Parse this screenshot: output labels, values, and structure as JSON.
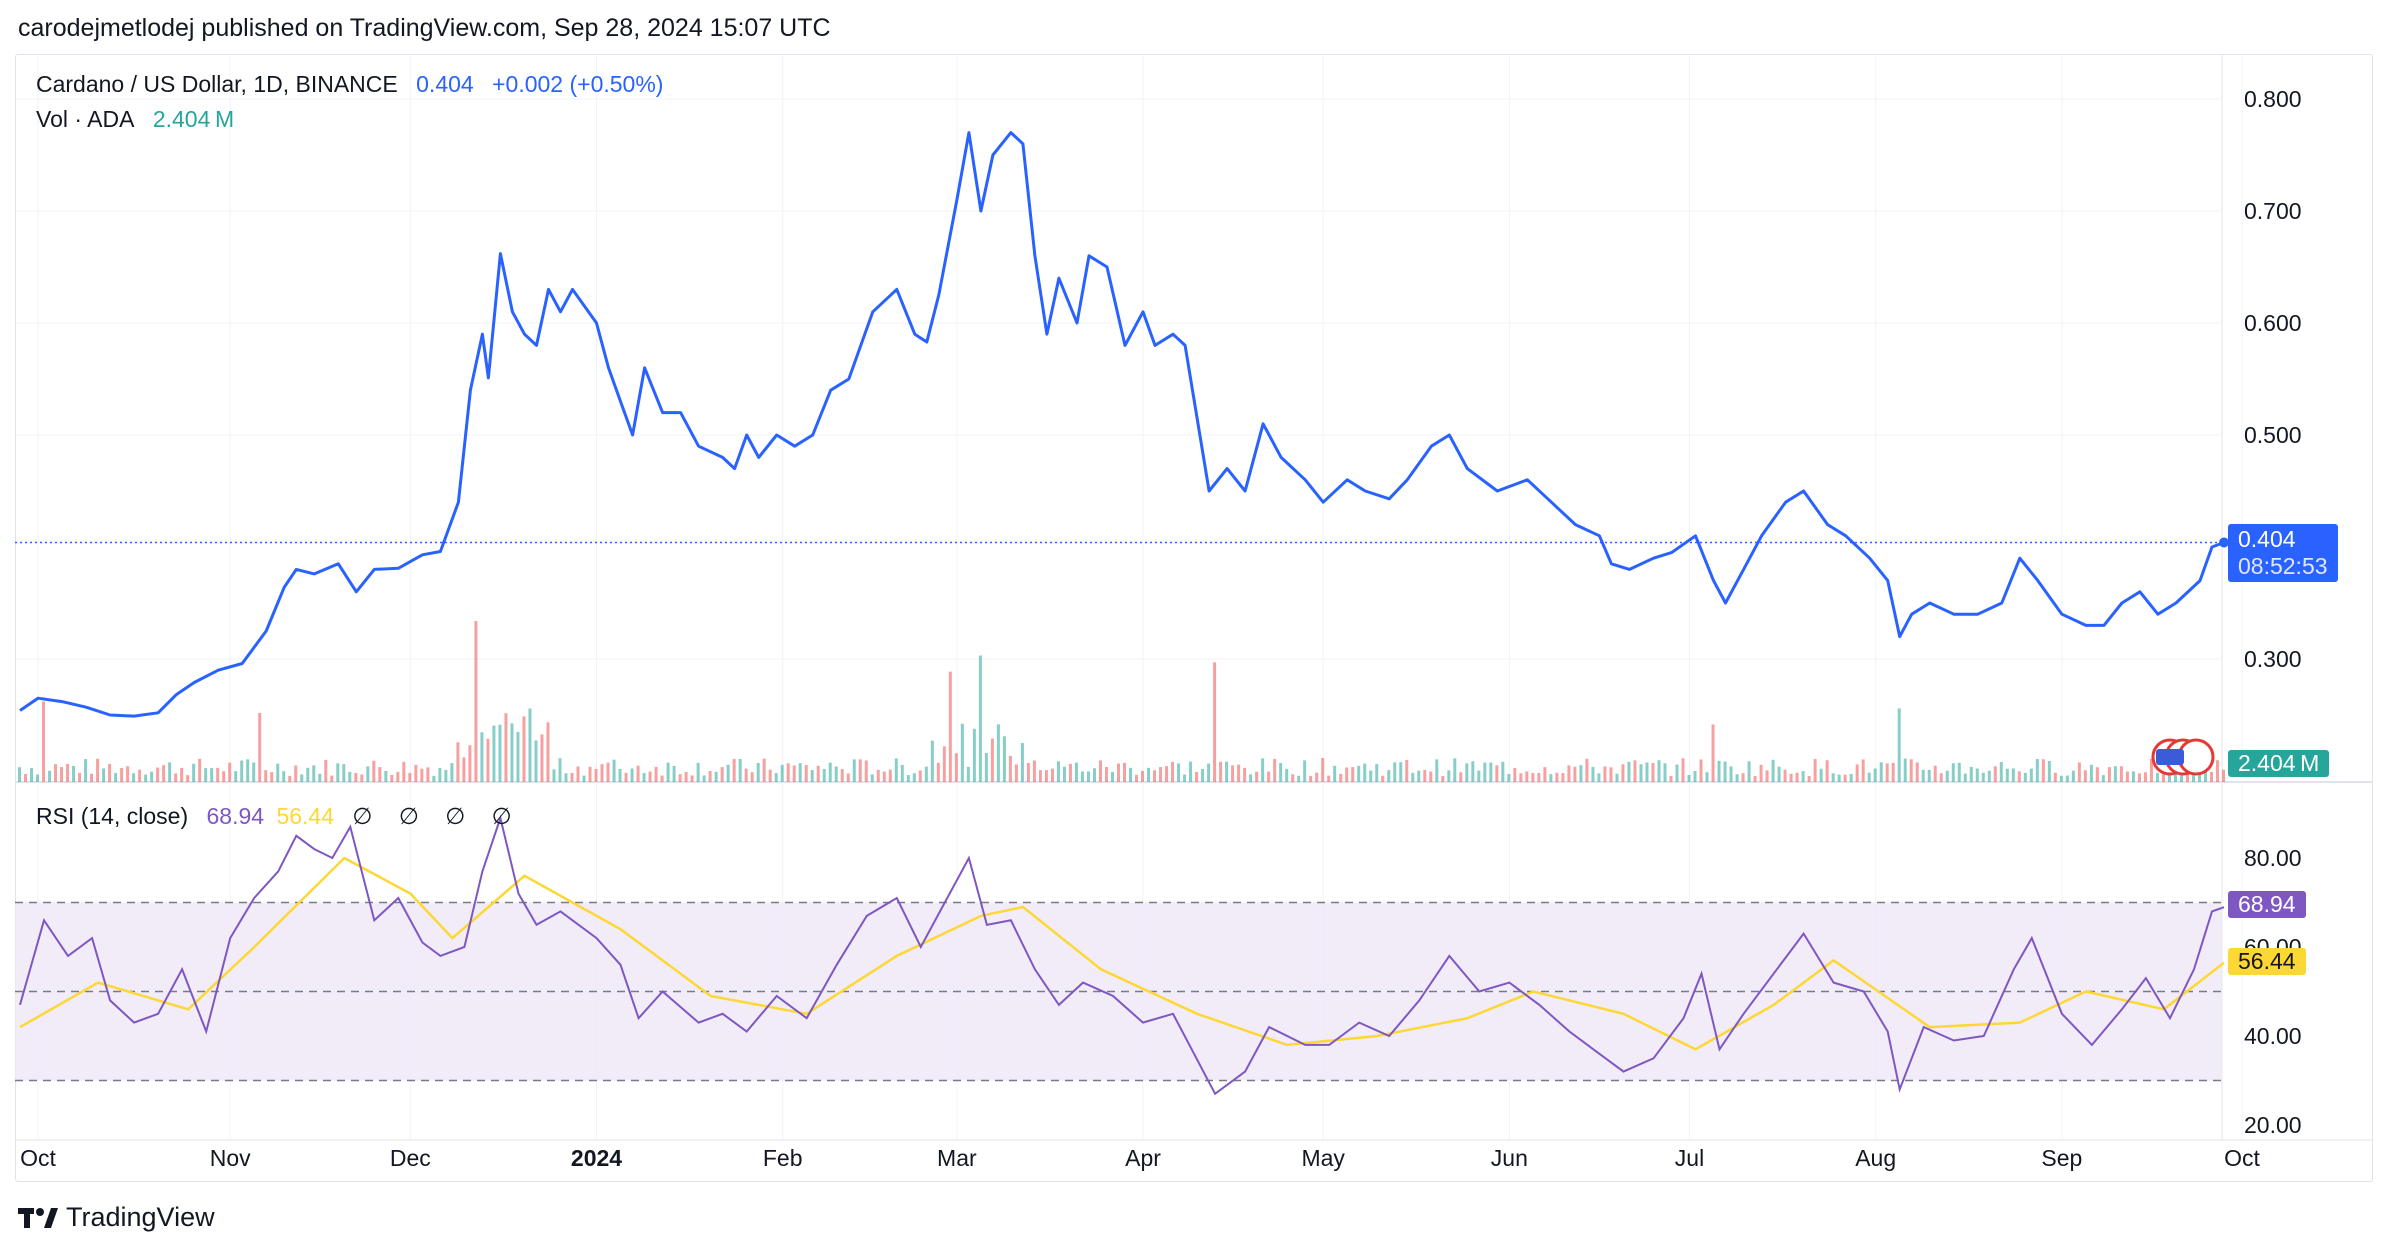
{
  "header": {
    "published_line": "carodejmetlodej published on TradingView.com, Sep 28, 2024 15:07 UTC"
  },
  "legend": {
    "symbol": "Cardano / US Dollar, 1D, BINANCE",
    "price": "0.404",
    "change": "+0.002 (+0.50%)",
    "vol_label": "Vol · ADA",
    "vol_value": "2.404 M",
    "rsi_label": "RSI (14, close)",
    "rsi_value": "68.94",
    "rsi_ma_value": "56.44",
    "rsi_flags": "∅ ∅ ∅ ∅"
  },
  "price_scale": {
    "last_price": "0.404",
    "countdown": "08:52:53",
    "volume_tag": "2.404 M",
    "rsi_tag": "68.94",
    "rsi_ma_tag": "56.44"
  },
  "footer": {
    "brand": "TradingView"
  },
  "colors": {
    "price_line": "#2962ff",
    "volume_up": "#26a69a",
    "volume_down": "#ef5350",
    "rsi_line": "#7e57c2",
    "rsi_ma": "#fdd835",
    "rsi_band": "#ede7f6"
  },
  "chart_data": [
    {
      "type": "line",
      "name": "price",
      "y_ticks": [
        "0.800",
        "0.700",
        "0.600",
        "0.500",
        "0.300"
      ],
      "ylim": [
        0.24,
        0.82
      ],
      "x_ticks": [
        "Oct",
        "Nov",
        "Dec",
        "2024",
        "Feb",
        "Mar",
        "Apr",
        "May",
        "Jun",
        "Jul",
        "Aug",
        "Sep",
        "Oct"
      ],
      "x_start": "2023-09-27",
      "x_end": "2024-09-28",
      "points": [
        [
          "2023-09-27",
          0.254
        ],
        [
          "2023-09-30",
          0.265
        ],
        [
          "2023-10-04",
          0.262
        ],
        [
          "2023-10-08",
          0.257
        ],
        [
          "2023-10-12",
          0.25
        ],
        [
          "2023-10-16",
          0.249
        ],
        [
          "2023-10-20",
          0.252
        ],
        [
          "2023-10-23",
          0.268
        ],
        [
          "2023-10-26",
          0.279
        ],
        [
          "2023-10-30",
          0.29
        ],
        [
          "2023-11-03",
          0.296
        ],
        [
          "2023-11-07",
          0.325
        ],
        [
          "2023-11-10",
          0.364
        ],
        [
          "2023-11-12",
          0.38
        ],
        [
          "2023-11-15",
          0.376
        ],
        [
          "2023-11-19",
          0.385
        ],
        [
          "2023-11-22",
          0.36
        ],
        [
          "2023-11-25",
          0.38
        ],
        [
          "2023-11-29",
          0.381
        ],
        [
          "2023-12-03",
          0.393
        ],
        [
          "2023-12-06",
          0.396
        ],
        [
          "2023-12-09",
          0.44
        ],
        [
          "2023-12-11",
          0.54
        ],
        [
          "2023-12-13",
          0.59
        ],
        [
          "2023-12-14",
          0.551
        ],
        [
          "2023-12-16",
          0.662
        ],
        [
          "2023-12-18",
          0.61
        ],
        [
          "2023-12-20",
          0.59
        ],
        [
          "2023-12-22",
          0.58
        ],
        [
          "2023-12-24",
          0.63
        ],
        [
          "2023-12-26",
          0.61
        ],
        [
          "2023-12-28",
          0.63
        ],
        [
          "2024-01-01",
          0.6
        ],
        [
          "2024-01-03",
          0.56
        ],
        [
          "2024-01-05",
          0.53
        ],
        [
          "2024-01-07",
          0.5
        ],
        [
          "2024-01-09",
          0.56
        ],
        [
          "2024-01-12",
          0.52
        ],
        [
          "2024-01-15",
          0.52
        ],
        [
          "2024-01-18",
          0.49
        ],
        [
          "2024-01-22",
          0.48
        ],
        [
          "2024-01-24",
          0.47
        ],
        [
          "2024-01-26",
          0.5
        ],
        [
          "2024-01-28",
          0.48
        ],
        [
          "2024-01-31",
          0.5
        ],
        [
          "2024-02-03",
          0.49
        ],
        [
          "2024-02-06",
          0.5
        ],
        [
          "2024-02-09",
          0.54
        ],
        [
          "2024-02-12",
          0.55
        ],
        [
          "2024-02-16",
          0.61
        ],
        [
          "2024-02-20",
          0.63
        ],
        [
          "2024-02-23",
          0.59
        ],
        [
          "2024-02-25",
          0.583
        ],
        [
          "2024-02-27",
          0.625
        ],
        [
          "2024-03-01",
          0.71
        ],
        [
          "2024-03-03",
          0.77
        ],
        [
          "2024-03-05",
          0.7
        ],
        [
          "2024-03-07",
          0.75
        ],
        [
          "2024-03-10",
          0.77
        ],
        [
          "2024-03-12",
          0.76
        ],
        [
          "2024-03-14",
          0.66
        ],
        [
          "2024-03-16",
          0.59
        ],
        [
          "2024-03-18",
          0.64
        ],
        [
          "2024-03-21",
          0.6
        ],
        [
          "2024-03-23",
          0.66
        ],
        [
          "2024-03-26",
          0.65
        ],
        [
          "2024-03-29",
          0.58
        ],
        [
          "2024-04-01",
          0.61
        ],
        [
          "2024-04-03",
          0.58
        ],
        [
          "2024-04-06",
          0.59
        ],
        [
          "2024-04-08",
          0.58
        ],
        [
          "2024-04-12",
          0.45
        ],
        [
          "2024-04-15",
          0.47
        ],
        [
          "2024-04-18",
          0.45
        ],
        [
          "2024-04-21",
          0.51
        ],
        [
          "2024-04-24",
          0.48
        ],
        [
          "2024-04-28",
          0.46
        ],
        [
          "2024-05-01",
          0.44
        ],
        [
          "2024-05-05",
          0.46
        ],
        [
          "2024-05-08",
          0.45
        ],
        [
          "2024-05-12",
          0.443
        ],
        [
          "2024-05-15",
          0.46
        ],
        [
          "2024-05-19",
          0.49
        ],
        [
          "2024-05-22",
          0.5
        ],
        [
          "2024-05-25",
          0.47
        ],
        [
          "2024-05-30",
          0.45
        ],
        [
          "2024-06-04",
          0.46
        ],
        [
          "2024-06-08",
          0.44
        ],
        [
          "2024-06-12",
          0.42
        ],
        [
          "2024-06-16",
          0.41
        ],
        [
          "2024-06-18",
          0.385
        ],
        [
          "2024-06-21",
          0.38
        ],
        [
          "2024-06-25",
          0.39
        ],
        [
          "2024-06-28",
          0.395
        ],
        [
          "2024-07-02",
          0.41
        ],
        [
          "2024-07-05",
          0.37
        ],
        [
          "2024-07-07",
          0.35
        ],
        [
          "2024-07-10",
          0.38
        ],
        [
          "2024-07-13",
          0.41
        ],
        [
          "2024-07-17",
          0.44
        ],
        [
          "2024-07-20",
          0.45
        ],
        [
          "2024-07-24",
          0.42
        ],
        [
          "2024-07-27",
          0.41
        ],
        [
          "2024-07-31",
          0.39
        ],
        [
          "2024-08-03",
          0.37
        ],
        [
          "2024-08-05",
          0.32
        ],
        [
          "2024-08-07",
          0.34
        ],
        [
          "2024-08-10",
          0.35
        ],
        [
          "2024-08-14",
          0.34
        ],
        [
          "2024-08-18",
          0.34
        ],
        [
          "2024-08-22",
          0.35
        ],
        [
          "2024-08-25",
          0.39
        ],
        [
          "2024-08-28",
          0.37
        ],
        [
          "2024-09-01",
          0.34
        ],
        [
          "2024-09-05",
          0.33
        ],
        [
          "2024-09-08",
          0.33
        ],
        [
          "2024-09-11",
          0.35
        ],
        [
          "2024-09-14",
          0.36
        ],
        [
          "2024-09-17",
          0.34
        ],
        [
          "2024-09-20",
          0.35
        ],
        [
          "2024-09-24",
          0.37
        ],
        [
          "2024-09-26",
          0.4
        ],
        [
          "2024-09-28",
          0.404
        ]
      ]
    },
    {
      "type": "bar",
      "name": "volume",
      "unit": "M ADA",
      "last_value": 2.404,
      "spikes": [
        [
          "2023-10-01",
          35
        ],
        [
          "2023-11-06",
          30
        ],
        [
          "2023-12-12",
          70
        ],
        [
          "2024-02-29",
          48
        ],
        [
          "2024-03-05",
          55
        ],
        [
          "2024-04-13",
          52
        ],
        [
          "2024-07-05",
          25
        ],
        [
          "2024-08-05",
          32
        ]
      ]
    },
    {
      "type": "line",
      "name": "RSI",
      "y_ticks": [
        "80.00",
        "60.00",
        "40.00",
        "20.00"
      ],
      "ylim": [
        20,
        90
      ],
      "bands": [
        30,
        50,
        70
      ],
      "rsi": [
        [
          "2023-09-27",
          47
        ],
        [
          "2023-10-01",
          66
        ],
        [
          "2023-10-05",
          58
        ],
        [
          "2023-10-09",
          62
        ],
        [
          "2023-10-12",
          48
        ],
        [
          "2023-10-16",
          43
        ],
        [
          "2023-10-20",
          45
        ],
        [
          "2023-10-24",
          55
        ],
        [
          "2023-10-28",
          41
        ],
        [
          "2023-11-01",
          62
        ],
        [
          "2023-11-05",
          71
        ],
        [
          "2023-11-09",
          77
        ],
        [
          "2023-11-12",
          85
        ],
        [
          "2023-11-15",
          82
        ],
        [
          "2023-11-18",
          80
        ],
        [
          "2023-11-21",
          87
        ],
        [
          "2023-11-25",
          66
        ],
        [
          "2023-11-29",
          71
        ],
        [
          "2023-12-03",
          61
        ],
        [
          "2023-12-06",
          58
        ],
        [
          "2023-12-10",
          60
        ],
        [
          "2023-12-13",
          77
        ],
        [
          "2023-12-16",
          89
        ],
        [
          "2023-12-19",
          72
        ],
        [
          "2023-12-22",
          65
        ],
        [
          "2023-12-26",
          68
        ],
        [
          "2024-01-01",
          62
        ],
        [
          "2024-01-05",
          56
        ],
        [
          "2024-01-08",
          44
        ],
        [
          "2024-01-12",
          50
        ],
        [
          "2024-01-18",
          43
        ],
        [
          "2024-01-22",
          45
        ],
        [
          "2024-01-26",
          41
        ],
        [
          "2024-01-31",
          49
        ],
        [
          "2024-02-05",
          44
        ],
        [
          "2024-02-10",
          56
        ],
        [
          "2024-02-15",
          67
        ],
        [
          "2024-02-20",
          71
        ],
        [
          "2024-02-24",
          60
        ],
        [
          "2024-02-28",
          70
        ],
        [
          "2024-03-03",
          80
        ],
        [
          "2024-03-06",
          65
        ],
        [
          "2024-03-10",
          66
        ],
        [
          "2024-03-14",
          55
        ],
        [
          "2024-03-18",
          47
        ],
        [
          "2024-03-22",
          52
        ],
        [
          "2024-03-27",
          49
        ],
        [
          "2024-04-01",
          43
        ],
        [
          "2024-04-06",
          45
        ],
        [
          "2024-04-13",
          27
        ],
        [
          "2024-04-18",
          32
        ],
        [
          "2024-04-22",
          42
        ],
        [
          "2024-04-28",
          38
        ],
        [
          "2024-05-02",
          38
        ],
        [
          "2024-05-07",
          43
        ],
        [
          "2024-05-12",
          40
        ],
        [
          "2024-05-17",
          48
        ],
        [
          "2024-05-22",
          58
        ],
        [
          "2024-05-27",
          50
        ],
        [
          "2024-06-01",
          52
        ],
        [
          "2024-06-06",
          47
        ],
        [
          "2024-06-11",
          41
        ],
        [
          "2024-06-16",
          36
        ],
        [
          "2024-06-20",
          32
        ],
        [
          "2024-06-25",
          35
        ],
        [
          "2024-06-30",
          44
        ],
        [
          "2024-07-03",
          54
        ],
        [
          "2024-07-06",
          37
        ],
        [
          "2024-07-10",
          45
        ],
        [
          "2024-07-15",
          54
        ],
        [
          "2024-07-20",
          63
        ],
        [
          "2024-07-25",
          52
        ],
        [
          "2024-07-30",
          50
        ],
        [
          "2024-08-03",
          41
        ],
        [
          "2024-08-05",
          28
        ],
        [
          "2024-08-09",
          42
        ],
        [
          "2024-08-14",
          39
        ],
        [
          "2024-08-19",
          40
        ],
        [
          "2024-08-24",
          55
        ],
        [
          "2024-08-27",
          62
        ],
        [
          "2024-09-01",
          45
        ],
        [
          "2024-09-06",
          38
        ],
        [
          "2024-09-11",
          46
        ],
        [
          "2024-09-15",
          53
        ],
        [
          "2024-09-19",
          44
        ],
        [
          "2024-09-23",
          55
        ],
        [
          "2024-09-26",
          68
        ],
        [
          "2024-09-28",
          68.94
        ]
      ],
      "rsi_ma": [
        [
          "2023-09-27",
          42
        ],
        [
          "2023-10-10",
          52
        ],
        [
          "2023-10-25",
          46
        ],
        [
          "2023-11-05",
          60
        ],
        [
          "2023-11-20",
          80
        ],
        [
          "2023-12-01",
          72
        ],
        [
          "2023-12-08",
          62
        ],
        [
          "2023-12-20",
          76
        ],
        [
          "2024-01-05",
          64
        ],
        [
          "2024-01-20",
          49
        ],
        [
          "2024-02-05",
          45
        ],
        [
          "2024-02-20",
          58
        ],
        [
          "2024-03-05",
          67
        ],
        [
          "2024-03-12",
          69
        ],
        [
          "2024-03-25",
          55
        ],
        [
          "2024-04-10",
          45
        ],
        [
          "2024-04-25",
          38
        ],
        [
          "2024-05-10",
          40
        ],
        [
          "2024-05-25",
          44
        ],
        [
          "2024-06-05",
          50
        ],
        [
          "2024-06-20",
          45
        ],
        [
          "2024-07-02",
          37
        ],
        [
          "2024-07-15",
          47
        ],
        [
          "2024-07-25",
          57
        ],
        [
          "2024-08-10",
          42
        ],
        [
          "2024-08-25",
          43
        ],
        [
          "2024-09-05",
          50
        ],
        [
          "2024-09-18",
          46
        ],
        [
          "2024-09-28",
          56.44
        ]
      ]
    }
  ]
}
